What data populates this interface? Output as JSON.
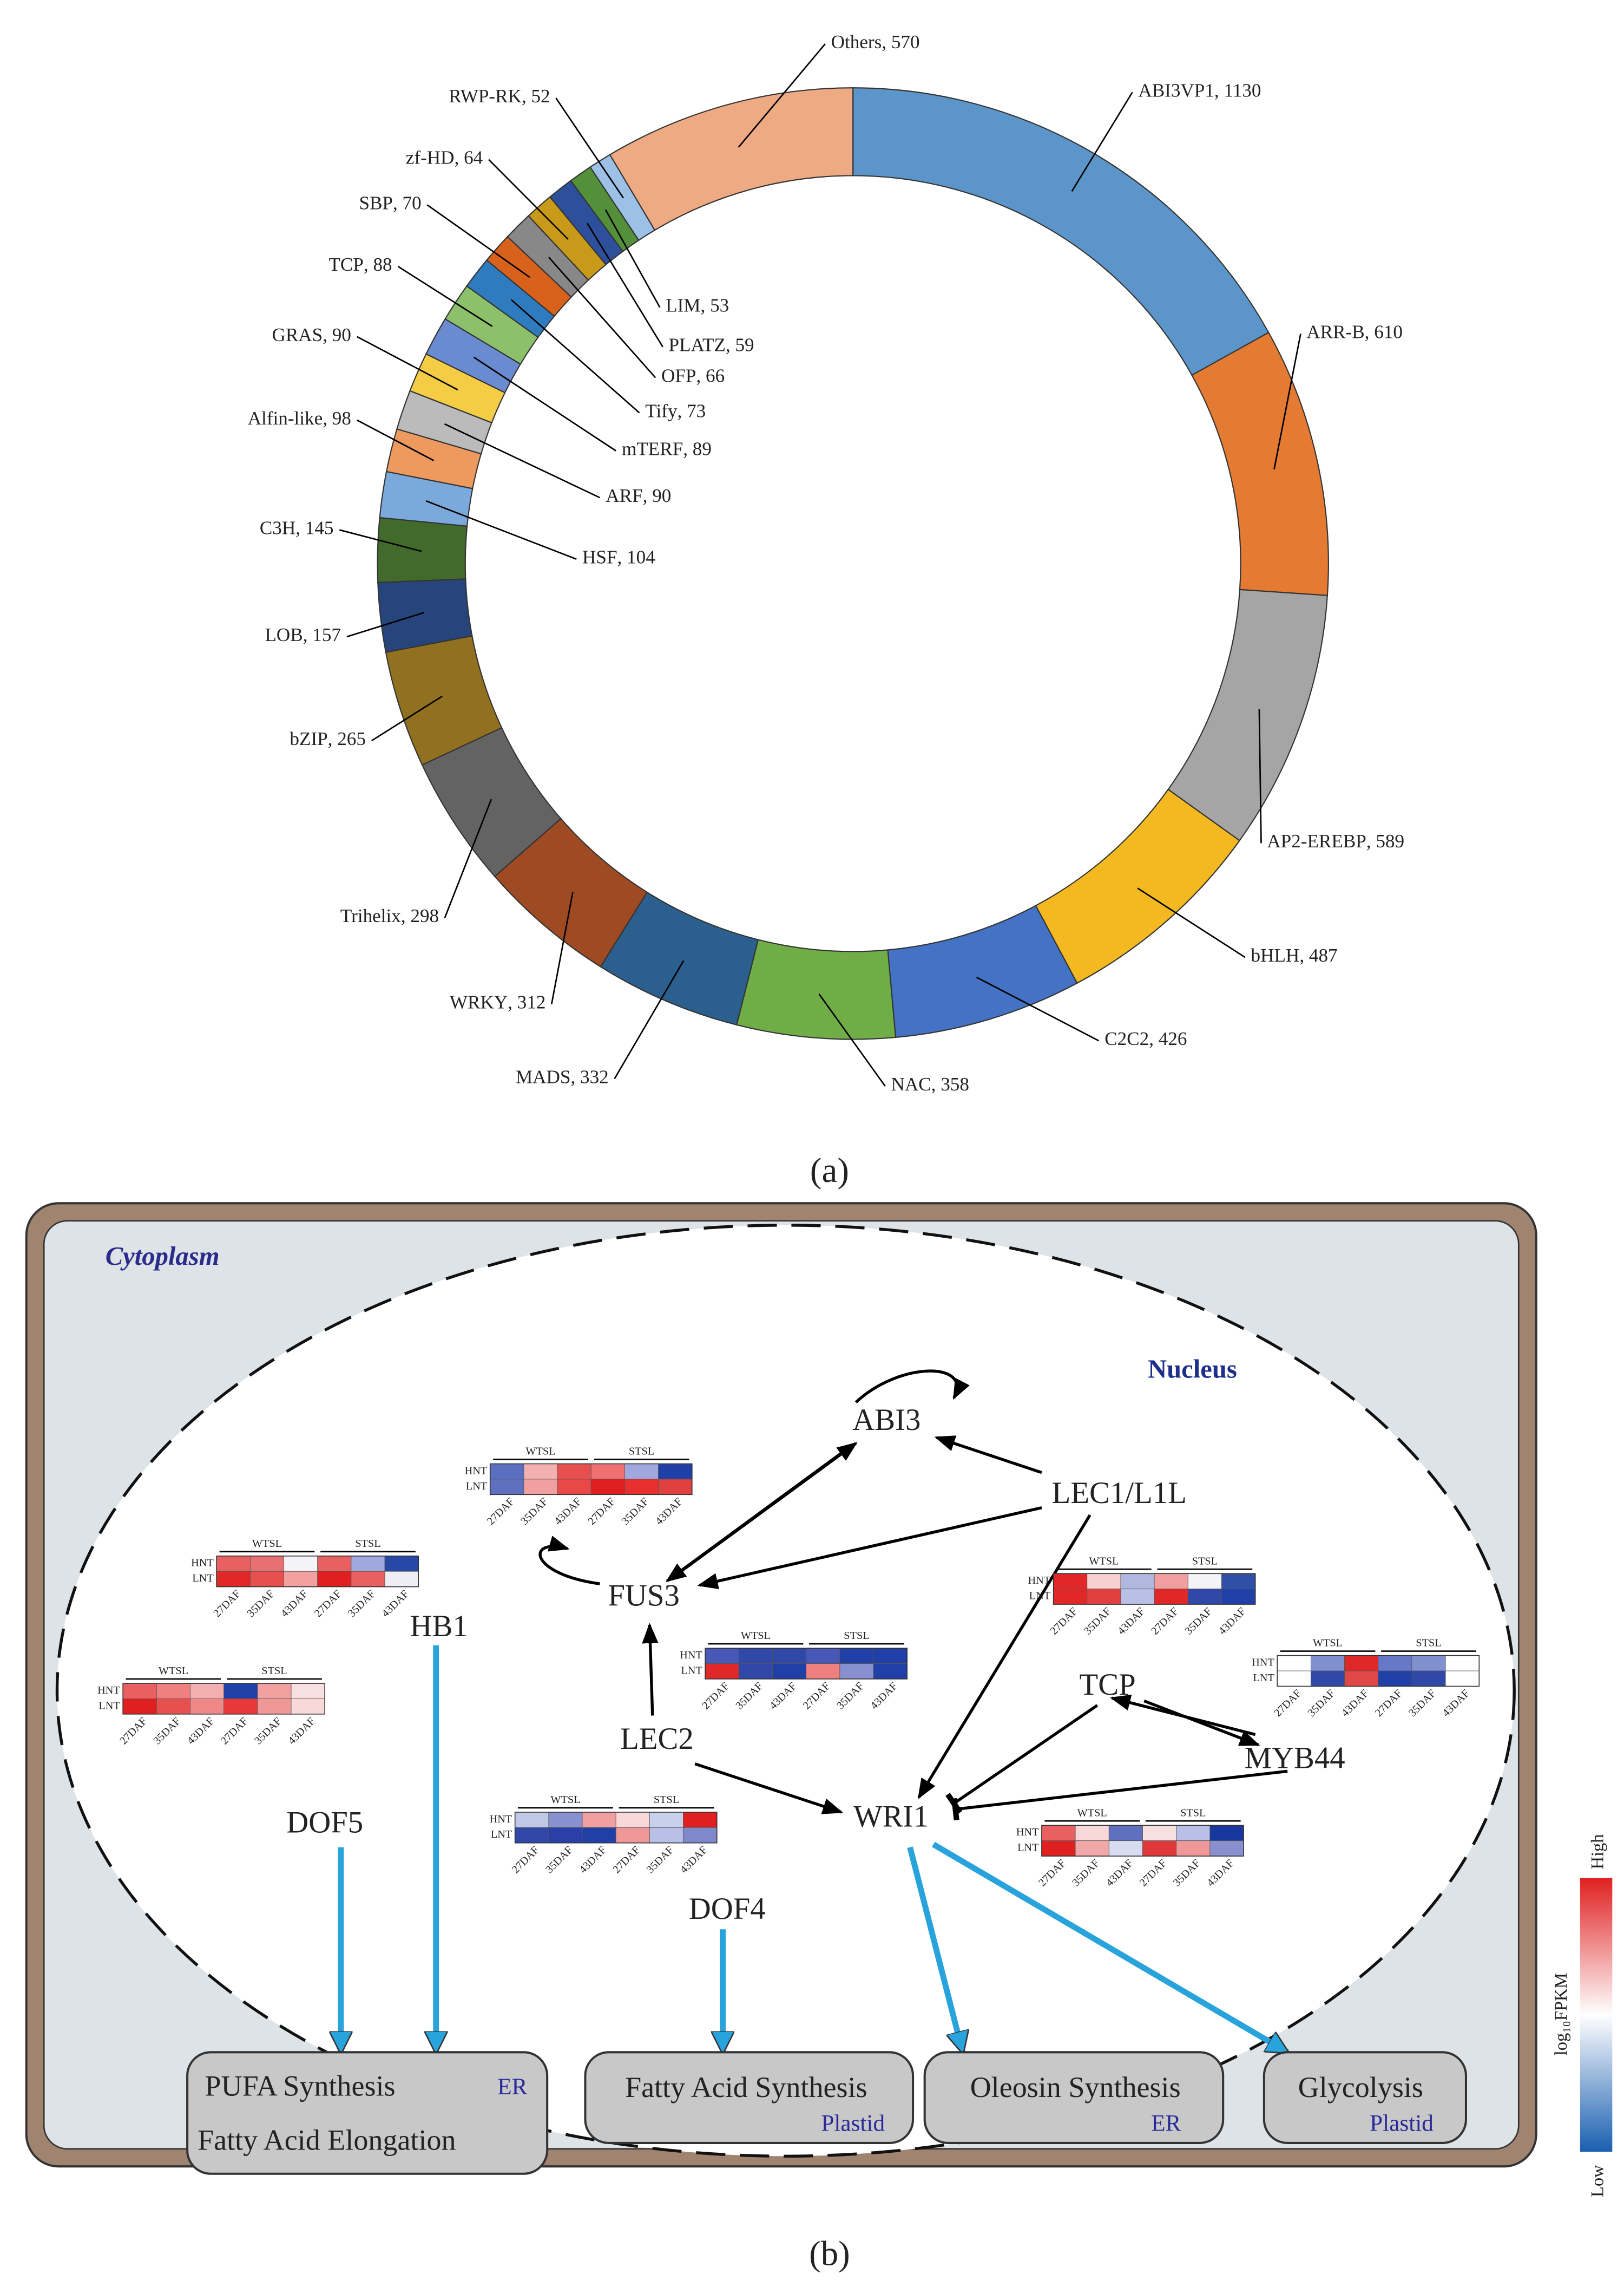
{
  "chart_data": {
    "type": "donut",
    "categories": [
      "ABI3VP1",
      "ARR-B",
      "AP2-EREBP",
      "bHLH",
      "C2C2",
      "NAC",
      "MADS",
      "WRKY",
      "Trihelix",
      "bZIP",
      "LOB",
      "C3H",
      "HSF",
      "Alfin-like",
      "ARF",
      "GRAS",
      "mTERF",
      "TCP",
      "Tify",
      "SBP",
      "OFP",
      "zf-HD",
      "PLATZ",
      "LIM",
      "RWP-RK",
      "Others"
    ],
    "values": [
      1130,
      610,
      589,
      487,
      426,
      358,
      332,
      312,
      298,
      265,
      157,
      145,
      104,
      98,
      90,
      90,
      89,
      88,
      73,
      70,
      66,
      64,
      59,
      53,
      52,
      570
    ],
    "colors": [
      "#5b95c9",
      "#e57b33",
      "#a5a5a5",
      "#f4b920",
      "#4472c4",
      "#70ad47",
      "#2b5f8e",
      "#9e4a22",
      "#636363",
      "#917020",
      "#26457a",
      "#416a2b",
      "#7ba9db",
      "#ee9a5e",
      "#bbbbbb",
      "#f5cc45",
      "#6b8bd0",
      "#8cc06a",
      "#2f7bc0",
      "#d8621c",
      "#888888",
      "#c99a1a",
      "#2e4f9c",
      "#548f3a",
      "#9dc1e6",
      "#eeaa82"
    ],
    "separator": ", "
  },
  "captions": [
    "(a)",
    "(b)"
  ],
  "diagram": {
    "compartments": {
      "cytoplasm": "Cytoplasm",
      "nucleus": "Nucleus"
    },
    "genes": [
      "ABI3",
      "LEC1/L1L",
      "FUS3",
      "HB1",
      "DOF5",
      "TCP",
      "MYB44",
      "LEC2",
      "WRI1",
      "DOF4"
    ],
    "heatmap_labels": {
      "groups": [
        "WTSL",
        "STSL"
      ],
      "rows": [
        "HNT",
        "LNT"
      ],
      "cols": [
        "27DAF",
        "35DAF",
        "43DAF"
      ]
    },
    "heatmaps": [
      [
        [
          "#5a6fc0",
          "#f2b0b0",
          "#e85050",
          "#f07070",
          "#a0a8dd",
          "#2040a8"
        ],
        [
          "#6070c0",
          "#f0a0a0",
          "#e84848",
          "#e02020",
          "#e83030",
          "#e04040"
        ]
      ],
      [
        [
          "#e86060",
          "#e87070",
          "#f4f4f8",
          "#e86060",
          "#a0a8dd",
          "#2848a8"
        ],
        [
          "#e02828",
          "#e85050",
          "#f4a0a0",
          "#e02020",
          "#e86060",
          "#eeeef4"
        ]
      ],
      [
        [
          "#e86060",
          "#f08080",
          "#f4b0b0",
          "#2040a8",
          "#f2a0a0",
          "#f8e0e0"
        ],
        [
          "#e02020",
          "#e85050",
          "#f08888",
          "#e83838",
          "#f09898",
          "#f8d8d8"
        ]
      ],
      [
        [
          "#4858b8",
          "#3048a8",
          "#3048a8",
          "#4858b8",
          "#2040a8",
          "#2040a8"
        ],
        [
          "#e02828",
          "#3048a8",
          "#2040a8",
          "#f08080",
          "#8890d0",
          "#2040a8"
        ]
      ],
      [
        [
          "#e02828",
          "#f8d0d0",
          "#b0b8e0",
          "#f0a0a0",
          "#f4f4f8",
          "#3050a8"
        ],
        [
          "#e02828",
          "#e04040",
          "#b8c0e8",
          "#e02828",
          "#3048a8",
          "#2040a8"
        ]
      ],
      [
        [
          "#ffffff",
          "#8090d0",
          "#e02828",
          "#6878c8",
          "#8090d0",
          "#ffffff"
        ],
        [
          "#ffffff",
          "#3048a8",
          "#e04848",
          "#2040a8",
          "#3048a8",
          "#ffffff"
        ]
      ],
      [
        [
          "#c0c8e8",
          "#8890d0",
          "#f0a0a0",
          "#f8d8d8",
          "#c8d0ec",
          "#e02020"
        ],
        [
          "#3048a8",
          "#2840a8",
          "#2040a8",
          "#f09898",
          "#b8c0e8",
          "#8088cc"
        ]
      ],
      [
        [
          "#e86060",
          "#f8d8d8",
          "#6070c0",
          "#f8e0e0",
          "#b8c0e8",
          "#1838a0"
        ],
        [
          "#e02020",
          "#f0a8a8",
          "#d8dcf0",
          "#e03838",
          "#f09898",
          "#8890d0"
        ]
      ]
    ],
    "processes": [
      {
        "label": "PUFA Synthesis",
        "location": "ER",
        "extra": "Fatty Acid Elongation"
      },
      {
        "label": "Fatty Acid Synthesis",
        "location": "Plastid"
      },
      {
        "label": "Oleosin Synthesis",
        "location": "ER"
      },
      {
        "label": "Glycolysis",
        "location": "Plastid"
      }
    ],
    "legend": {
      "title": "log₁₀FPKM",
      "high": "High",
      "low": "Low"
    }
  }
}
